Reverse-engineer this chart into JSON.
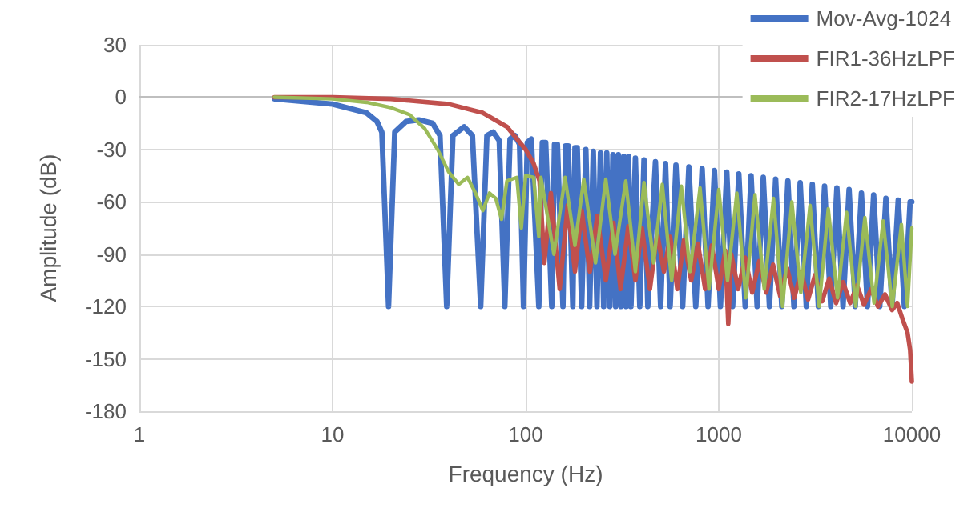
{
  "chart_data": {
    "type": "line",
    "xlabel": "Frequency (Hz)",
    "ylabel": "Amplitude (dB)",
    "log": "x",
    "xlim": [
      1,
      10000
    ],
    "xticks": [
      1,
      10,
      100,
      1000,
      10000
    ],
    "ylim": [
      -180,
      30
    ],
    "yticks": [
      -180,
      -150,
      -120,
      -90,
      -60,
      -30,
      0,
      30
    ],
    "grid": true,
    "legend": "top right",
    "marker": "none",
    "line_style": "solid",
    "series": [
      {
        "name": "Mov-Avg-1024",
        "color": "#4472c4",
        "x": [
          5,
          10,
          15,
          17,
          18,
          19.5,
          21,
          24,
          28,
          33,
          36,
          39,
          42,
          48,
          53,
          58.5,
          63,
          68,
          73,
          78,
          83,
          88,
          93,
          97.5,
          102,
          107,
          117,
          122,
          127,
          136.5,
          141,
          146,
          156,
          161,
          166,
          175.5,
          180,
          185,
          195,
          205,
          214.5,
          224,
          234,
          244,
          253.5,
          263,
          273,
          283,
          292.5,
          302,
          312,
          322,
          331.5,
          341,
          351,
          370,
          390,
          410,
          429,
          470,
          500,
          530,
          560,
          600,
          650,
          700,
          760,
          820,
          880,
          950,
          1020,
          1100,
          1180,
          1270,
          1370,
          1470,
          1580,
          1700,
          1830,
          1970,
          2120,
          2280,
          2450,
          2640,
          2840,
          3050,
          3280,
          3530,
          3800,
          4090,
          4400,
          4730,
          5090,
          5480,
          5890,
          6340,
          6820,
          7340,
          7900,
          8500,
          9150,
          9800,
          10000
        ],
        "values": [
          -1,
          -4,
          -9,
          -14,
          -20,
          -120,
          -20,
          -14,
          -13,
          -15,
          -22,
          -120,
          -22,
          -17,
          -22,
          -120,
          -22,
          -20,
          -25,
          -120,
          -24,
          -22,
          -27,
          -120,
          -26,
          -24,
          -120,
          -26,
          -26,
          -120,
          -27,
          -27,
          -120,
          -28,
          -28,
          -120,
          -29,
          -29,
          -120,
          -30,
          -120,
          -31,
          -120,
          -32,
          -120,
          -32,
          -120,
          -33,
          -120,
          -33,
          -120,
          -34,
          -120,
          -34,
          -120,
          -35,
          -120,
          -36,
          -120,
          -37,
          -120,
          -38,
          -120,
          -39,
          -120,
          -40,
          -120,
          -41,
          -120,
          -42,
          -120,
          -43,
          -120,
          -44,
          -120,
          -45,
          -120,
          -46,
          -120,
          -47,
          -120,
          -48,
          -120,
          -49,
          -120,
          -50,
          -120,
          -51,
          -120,
          -52,
          -120,
          -53,
          -120,
          -55,
          -120,
          -56,
          -120,
          -58,
          -120,
          -59,
          -120,
          -60,
          -60
        ]
      },
      {
        "name": "FIR1-36HzLPF",
        "color": "#c0504d",
        "x": [
          5,
          10,
          20,
          40,
          60,
          80,
          100,
          110,
          118,
          125,
          135,
          150,
          165,
          180,
          195,
          215,
          235,
          260,
          285,
          310,
          340,
          370,
          400,
          440,
          480,
          520,
          560,
          610,
          660,
          720,
          780,
          850,
          920,
          1000,
          1080,
          1120,
          1160,
          1260,
          1370,
          1490,
          1620,
          1760,
          1910,
          2080,
          2260,
          2460,
          2670,
          2900,
          3150,
          3430,
          3730,
          4050,
          4400,
          4790,
          5200,
          5650,
          6150,
          6680,
          7260,
          7900,
          8400,
          9000,
          9500,
          9800,
          10000
        ],
        "values": [
          0,
          0,
          -1,
          -4,
          -9,
          -17,
          -30,
          -38,
          -48,
          -95,
          -55,
          -110,
          -62,
          -100,
          -65,
          -100,
          -68,
          -105,
          -72,
          -110,
          -74,
          -105,
          -75,
          -110,
          -78,
          -100,
          -80,
          -110,
          -82,
          -105,
          -84,
          -110,
          -85,
          -110,
          -88,
          -130,
          -90,
          -110,
          -92,
          -112,
          -94,
          -112,
          -96,
          -114,
          -98,
          -115,
          -100,
          -116,
          -102,
          -117,
          -104,
          -118,
          -106,
          -118,
          -108,
          -119,
          -110,
          -120,
          -113,
          -122,
          -118,
          -128,
          -135,
          -145,
          -163
        ]
      },
      {
        "name": "FIR2-17HzLPF",
        "color": "#9bbb59",
        "x": [
          5,
          10,
          15,
          20,
          25,
          30,
          35,
          40,
          45,
          50,
          55,
          60,
          65,
          70,
          75,
          80,
          90,
          95,
          100,
          110,
          117,
          120,
          140,
          160,
          180,
          200,
          230,
          260,
          290,
          330,
          370,
          410,
          460,
          510,
          570,
          640,
          710,
          800,
          890,
          1000,
          1110,
          1240,
          1380,
          1540,
          1720,
          1920,
          2140,
          2390,
          2660,
          2970,
          3310,
          3690,
          4120,
          4590,
          5120,
          5710,
          6370,
          7100,
          7920,
          8830,
          9500,
          10000
        ],
        "values": [
          0,
          -1,
          -3,
          -6,
          -10,
          -18,
          -30,
          -43,
          -50,
          -46,
          -55,
          -65,
          -55,
          -58,
          -70,
          -48,
          -46,
          -75,
          -45,
          -46,
          -80,
          -46,
          -90,
          -46,
          -85,
          -47,
          -95,
          -47,
          -90,
          -48,
          -100,
          -49,
          -95,
          -50,
          -105,
          -51,
          -100,
          -52,
          -110,
          -53,
          -105,
          -55,
          -115,
          -56,
          -110,
          -58,
          -120,
          -60,
          -112,
          -62,
          -120,
          -64,
          -115,
          -66,
          -120,
          -69,
          -118,
          -71,
          -120,
          -73,
          -120,
          -75
        ]
      }
    ]
  }
}
